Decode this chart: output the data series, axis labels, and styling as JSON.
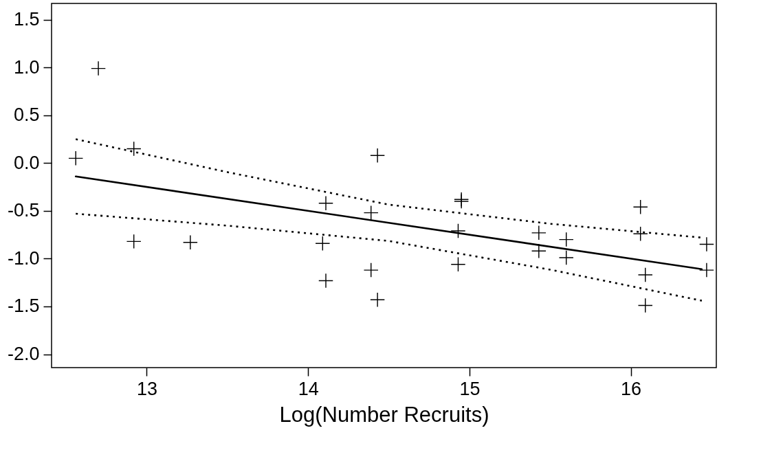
{
  "chart_data": {
    "type": "scatter",
    "xlabel": "Log(Number Recruits)",
    "xlim": [
      12.41,
      16.53
    ],
    "ylim": [
      -2.14,
      1.67
    ],
    "xticks": [
      13,
      14,
      15,
      16
    ],
    "yticks": [
      {
        "value": -2,
        "label": "-2.0"
      },
      {
        "value": -1.5,
        "label": "-1.5"
      },
      {
        "value": -1,
        "label": "-1.0"
      },
      {
        "value": -0.5,
        "label": "-0.5"
      },
      {
        "value": 0,
        "label": "0.0"
      },
      {
        "value": 0.5,
        "label": "0.5"
      },
      {
        "value": 1,
        "label": "1.0"
      },
      {
        "value": 1.5,
        "label": "1.5"
      }
    ],
    "grid": false,
    "series": [
      {
        "color": "#000000",
        "marker": "cross",
        "x": [
          12.7,
          12.56,
          12.92,
          12.92,
          13.27,
          14.43,
          14.11,
          14.39,
          14.95,
          14.95,
          14.93,
          14.09,
          14.11,
          14.39,
          14.43,
          14.93,
          15.43,
          15.43,
          15.6,
          15.6,
          16.06,
          16.06,
          16.09,
          16.09,
          16.47,
          16.47
        ],
        "values": [
          0.99,
          0.05,
          0.15,
          -0.82,
          -0.83,
          0.08,
          -0.42,
          -0.52,
          -0.38,
          -0.4,
          -0.71,
          -0.84,
          -1.23,
          -1.12,
          -1.43,
          -1.06,
          -0.73,
          -0.92,
          -0.8,
          -0.99,
          -0.46,
          -0.74,
          -1.17,
          -1.49,
          -0.85,
          -1.12
        ]
      },
      {
        "type": "line",
        "color": "#000000",
        "line_style": "solid",
        "x": [
          12.56,
          16.44
        ],
        "values": [
          -0.14,
          -1.11
        ]
      },
      {
        "type": "line",
        "color": "#000000",
        "line_style": "dotted",
        "x": [
          12.56,
          13.5,
          14.5,
          15.5,
          16.44
        ],
        "values": [
          0.25,
          -0.095,
          -0.435,
          -0.635,
          -0.78
        ]
      },
      {
        "type": "line",
        "color": "#000000",
        "line_style": "dotted",
        "x": [
          12.56,
          13.5,
          14.5,
          15.5,
          16.44
        ],
        "values": [
          -0.53,
          -0.655,
          -0.815,
          -1.115,
          -1.44
        ]
      }
    ]
  }
}
